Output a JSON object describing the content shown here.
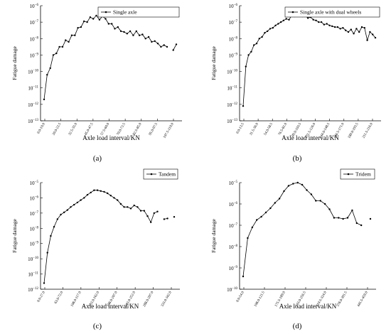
{
  "chart_data": [
    {
      "type": "line",
      "panel_label": "(a)",
      "xlabel": "Axle load interval/KN",
      "ylabel": "Fatigue damage",
      "yscale": "log",
      "ylim_exp": [
        -13,
        -6
      ],
      "legend": {
        "entries": [
          "Single axle"
        ],
        "placement": "top-right"
      },
      "x_tick_labels": [
        "0.0-10.0",
        "20.0-22.5",
        "32.5-35.0",
        "45.0-47.5",
        "57.5-60.0",
        "70.0-72.5",
        "82.5-85.0",
        "95.0-97.5",
        "107.5-110.0"
      ],
      "series": [
        {
          "name": "Single axle",
          "y_exp": [
            -11.7,
            -10.2,
            -9.8,
            -9.0,
            -8.9,
            -8.5,
            -8.5,
            -8.1,
            -8.2,
            -7.8,
            -7.8,
            -7.35,
            -7.3,
            -6.95,
            -7.0,
            -6.7,
            -6.8,
            -6.6,
            -6.85,
            -6.65,
            -6.8,
            -7.1,
            -7.1,
            -7.4,
            -7.3,
            -7.55,
            -7.6,
            -7.7,
            -7.55,
            -7.8,
            -7.55,
            -7.8,
            -7.75,
            -8.0,
            -7.9,
            -8.2,
            -8.15,
            -8.3,
            -8.5,
            -8.4,
            -8.5,
            null,
            -8.7,
            -8.35
          ],
          "gaps_after": [
            40
          ]
        }
      ]
    },
    {
      "type": "line",
      "panel_label": "(b)",
      "xlabel": "Axle load interval/KN",
      "ylabel": "Fatigue damage",
      "yscale": "log",
      "ylim_exp": [
        -13,
        -6
      ],
      "legend": {
        "entries": [
          "Single   axle with dual wheels"
        ],
        "placement": "top-right"
      },
      "x_tick_labels": [
        "0.0-13.5",
        "31.5-36.0",
        "54.0-58.5",
        "76.5-81.0",
        "99.0-103.5",
        "121.5-126.0",
        "144.0-148.5",
        "166.5-171.0",
        "189.0-193.5",
        "211.5-216.0"
      ],
      "series": [
        {
          "name": "Single   axle with dual wheels",
          "y_exp": [
            -12.1,
            -9.7,
            -9.0,
            -8.8,
            -8.4,
            -8.3,
            -8.0,
            -7.9,
            -7.65,
            -7.55,
            -7.4,
            -7.35,
            -7.2,
            -7.1,
            -7.0,
            -6.9,
            -6.8,
            -6.85,
            -6.6,
            -6.65,
            -6.55,
            -6.6,
            -6.65,
            -6.6,
            -6.75,
            -6.7,
            -6.85,
            -6.9,
            -7.0,
            -7.0,
            -7.15,
            -7.1,
            -7.2,
            -7.25,
            -7.3,
            -7.3,
            -7.4,
            -7.35,
            -7.5,
            -7.6,
            -7.45,
            -7.7,
            -7.4,
            -7.6,
            -7.3,
            -7.35,
            -8.1,
            -7.6,
            -7.75,
            -7.95
          ]
        }
      ]
    },
    {
      "type": "line",
      "panel_label": "(c)",
      "xlabel": "Axle load interval/KN",
      "ylabel": "Fatigue damage",
      "yscale": "log",
      "ylim_exp": [
        -12,
        -5
      ],
      "legend": {
        "entries": [
          "Tandem"
        ],
        "placement": "top-right"
      },
      "x_tick_labels": [
        "0.0-27.0",
        "63.0-72.0",
        "108.0-117.0",
        "153.0-162.0",
        "198.0-207.0",
        "243.0-252.0",
        "288.0-297.0",
        "333.0-342.0"
      ],
      "series": [
        {
          "name": "Tandem",
          "y_exp": [
            -11.6,
            -9.6,
            -8.5,
            -7.9,
            -7.4,
            -7.1,
            -6.95,
            -6.8,
            -6.6,
            -6.45,
            -6.3,
            -6.15,
            -6.0,
            -5.8,
            -5.65,
            -5.5,
            -5.5,
            -5.55,
            -5.6,
            -5.7,
            -5.85,
            -6.0,
            -6.15,
            -6.4,
            -6.6,
            -6.6,
            -6.7,
            -6.5,
            -6.6,
            -6.85,
            -6.85,
            -7.2,
            -7.6,
            -7.0,
            -6.9,
            null,
            -7.4,
            -7.35,
            null,
            -7.25
          ],
          "gaps_after": [
            34,
            37
          ]
        }
      ]
    },
    {
      "type": "line",
      "panel_label": "(d)",
      "xlabel": "Axle load interval/KN",
      "ylabel": "Fatigue damage",
      "yscale": "log",
      "ylim_exp": [
        -10,
        -5
      ],
      "legend": {
        "entries": [
          "Tridem"
        ],
        "placement": "top-right"
      },
      "x_tick_labels": [
        "0.0-54.0",
        "108.0-121.5",
        "175.5-189.0",
        "243.0-256.5",
        "310.5-324.0",
        "378.0-391.5",
        "445.5-459.0"
      ],
      "series": [
        {
          "name": "Tridem",
          "y_exp": [
            -9.4,
            -7.6,
            -7.1,
            -6.75,
            -6.6,
            -6.4,
            -6.2,
            -5.95,
            -5.75,
            -5.4,
            -5.15,
            -5.05,
            -5.0,
            -5.1,
            -5.35,
            -5.55,
            -5.85,
            -5.85,
            -6.0,
            -6.25,
            -6.65,
            -6.65,
            -6.7,
            -6.65,
            -6.3,
            -6.9,
            -7.0,
            null,
            -6.7
          ],
          "gaps_after": [
            26
          ]
        }
      ]
    }
  ]
}
